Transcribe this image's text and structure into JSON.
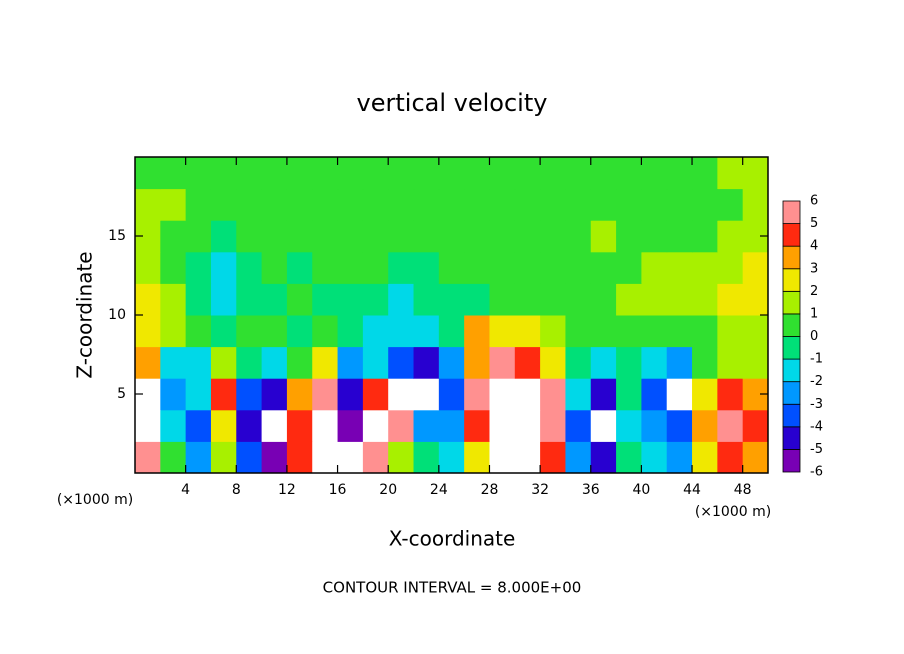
{
  "chart_data": {
    "type": "heatmap",
    "title": "vertical velocity",
    "x_label": "X-coordinate",
    "y_label": "Z-coordinate",
    "x_unit": "(×1000 m)",
    "y_unit": "(×1000 m)",
    "footer": "CONTOUR INTERVAL = 8.000E+00",
    "xlim": [
      0,
      50
    ],
    "ylim": [
      0,
      20
    ],
    "xticks": [
      4,
      8,
      12,
      16,
      20,
      24,
      28,
      32,
      36,
      40,
      44,
      48
    ],
    "yticks": [
      5,
      10,
      15
    ],
    "x": [
      1,
      3,
      5,
      7,
      9,
      11,
      13,
      15,
      17,
      19,
      21,
      23,
      25,
      27,
      29,
      31,
      33,
      35,
      37,
      39,
      41,
      43,
      45,
      47,
      49
    ],
    "y": [
      1,
      3,
      5,
      7,
      9,
      11,
      13,
      15,
      17,
      19
    ],
    "z": [
      [
        5,
        0,
        -3,
        1,
        -4,
        -6,
        4,
        8,
        -7,
        5,
        1,
        -1,
        -2,
        2,
        7,
        8,
        4,
        -3,
        -5,
        -1,
        -2,
        -3,
        2,
        4,
        3
      ],
      [
        9,
        -2,
        -4,
        2,
        -5,
        -7,
        4,
        7,
        -6,
        8,
        5,
        -3,
        -3,
        4,
        9,
        9,
        5,
        -4,
        -8,
        -2,
        -3,
        -4,
        3,
        5,
        4
      ],
      [
        7,
        -3,
        -2,
        4,
        -4,
        -5,
        3,
        5,
        -5,
        4,
        8,
        7,
        -4,
        5,
        9,
        8,
        6,
        -2,
        -5,
        -1,
        -4,
        -7,
        2,
        4,
        3
      ],
      [
        3,
        -2,
        -2,
        1,
        -1,
        -2,
        0,
        2,
        -3,
        -2,
        -4,
        -5,
        -3,
        3,
        5,
        4,
        2,
        -1,
        -2,
        -1,
        -2,
        -3,
        0,
        1,
        1
      ],
      [
        2,
        1,
        0,
        -1,
        0,
        0,
        -1,
        0,
        -1,
        -2,
        -2,
        -2,
        -1,
        3,
        2,
        2,
        1,
        0,
        0,
        0,
        0,
        0,
        0,
        1,
        1
      ],
      [
        2,
        1,
        -1,
        -2,
        -1,
        -1,
        0,
        -1,
        -1,
        -1,
        -2,
        -1,
        -1,
        -1,
        0,
        0,
        0,
        0,
        0,
        1,
        1,
        1,
        1,
        2,
        2
      ],
      [
        1,
        0,
        -1,
        -2,
        -1,
        0,
        -1,
        0,
        0,
        0,
        -1,
        -1,
        0,
        0,
        0,
        0,
        0,
        0,
        0,
        0,
        1,
        1,
        1,
        1,
        2
      ],
      [
        1,
        0,
        0,
        -1,
        0,
        0,
        0,
        0,
        0,
        0,
        0,
        0,
        0,
        0,
        0,
        0,
        0,
        0,
        1,
        0,
        0,
        0,
        0,
        1,
        1
      ],
      [
        1,
        1,
        0,
        0,
        0,
        0,
        0,
        0,
        0,
        0,
        0,
        0,
        0,
        0,
        0,
        0,
        0,
        0,
        0,
        0,
        0,
        0,
        0,
        0,
        1
      ],
      [
        0,
        0,
        0,
        0,
        0,
        0,
        0,
        0,
        0,
        0,
        0,
        0,
        0,
        0,
        0,
        0,
        0,
        0,
        0,
        0,
        0,
        0,
        0,
        1,
        1
      ]
    ],
    "colorbar": {
      "levels": [
        -6,
        -5,
        -4,
        -3,
        -2,
        -1,
        0,
        1,
        2,
        3,
        4,
        5,
        6
      ],
      "colors": [
        "#7800b4",
        "#2800d0",
        "#0050ff",
        "#0098ff",
        "#00d8e8",
        "#00e078",
        "#30e030",
        "#a8f000",
        "#f0e800",
        "#ffa000",
        "#ff2a10",
        "#ff9090"
      ],
      "over_color": "#ffffff",
      "under_color": "#ffffff"
    }
  }
}
